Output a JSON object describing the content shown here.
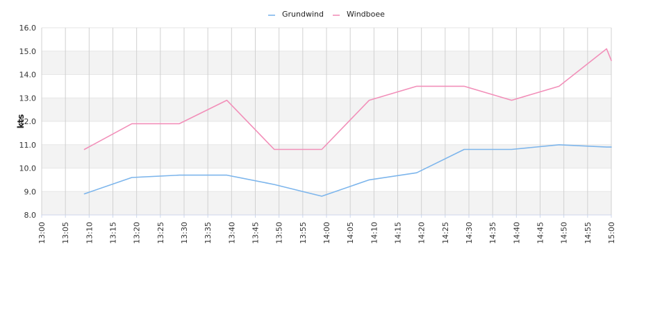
{
  "chart_data": {
    "type": "line",
    "ylabel": "kts",
    "ylim": [
      8.0,
      16.0
    ],
    "y_ticks": [
      "8.0",
      "9.0",
      "10.0",
      "11.0",
      "12.0",
      "13.0",
      "14.0",
      "15.0",
      "16.0"
    ],
    "x_ticks": [
      "13:00",
      "13:05",
      "13:10",
      "13:15",
      "13:20",
      "13:25",
      "13:30",
      "13:35",
      "13:40",
      "13:45",
      "13:50",
      "13:55",
      "14:00",
      "14:05",
      "14:10",
      "14:15",
      "14:20",
      "14:25",
      "14:30",
      "14:35",
      "14:40",
      "14:45",
      "14:50",
      "14:55",
      "15:00"
    ],
    "xlim": [
      "13:00",
      "15:00"
    ],
    "legend_position": "top-center",
    "grid": true,
    "series": [
      {
        "name": "Grundwind",
        "color": "#7cb5ec",
        "x": [
          "13:09",
          "13:19",
          "13:29",
          "13:39",
          "13:49",
          "13:59",
          "14:09",
          "14:19",
          "14:29",
          "14:39",
          "14:49",
          "14:59",
          "15:00"
        ],
        "y": [
          8.9,
          9.6,
          9.7,
          9.7,
          9.3,
          8.8,
          9.5,
          9.8,
          10.8,
          10.8,
          11.0,
          10.9,
          10.9
        ]
      },
      {
        "name": "Windboee",
        "color": "#f28fb9",
        "x": [
          "13:09",
          "13:19",
          "13:29",
          "13:39",
          "13:49",
          "13:59",
          "14:09",
          "14:19",
          "14:29",
          "14:39",
          "14:49",
          "14:59",
          "15:00"
        ],
        "y": [
          10.8,
          11.9,
          11.9,
          12.9,
          10.8,
          10.8,
          12.9,
          13.5,
          13.5,
          12.9,
          13.5,
          15.1,
          14.6
        ]
      }
    ]
  }
}
